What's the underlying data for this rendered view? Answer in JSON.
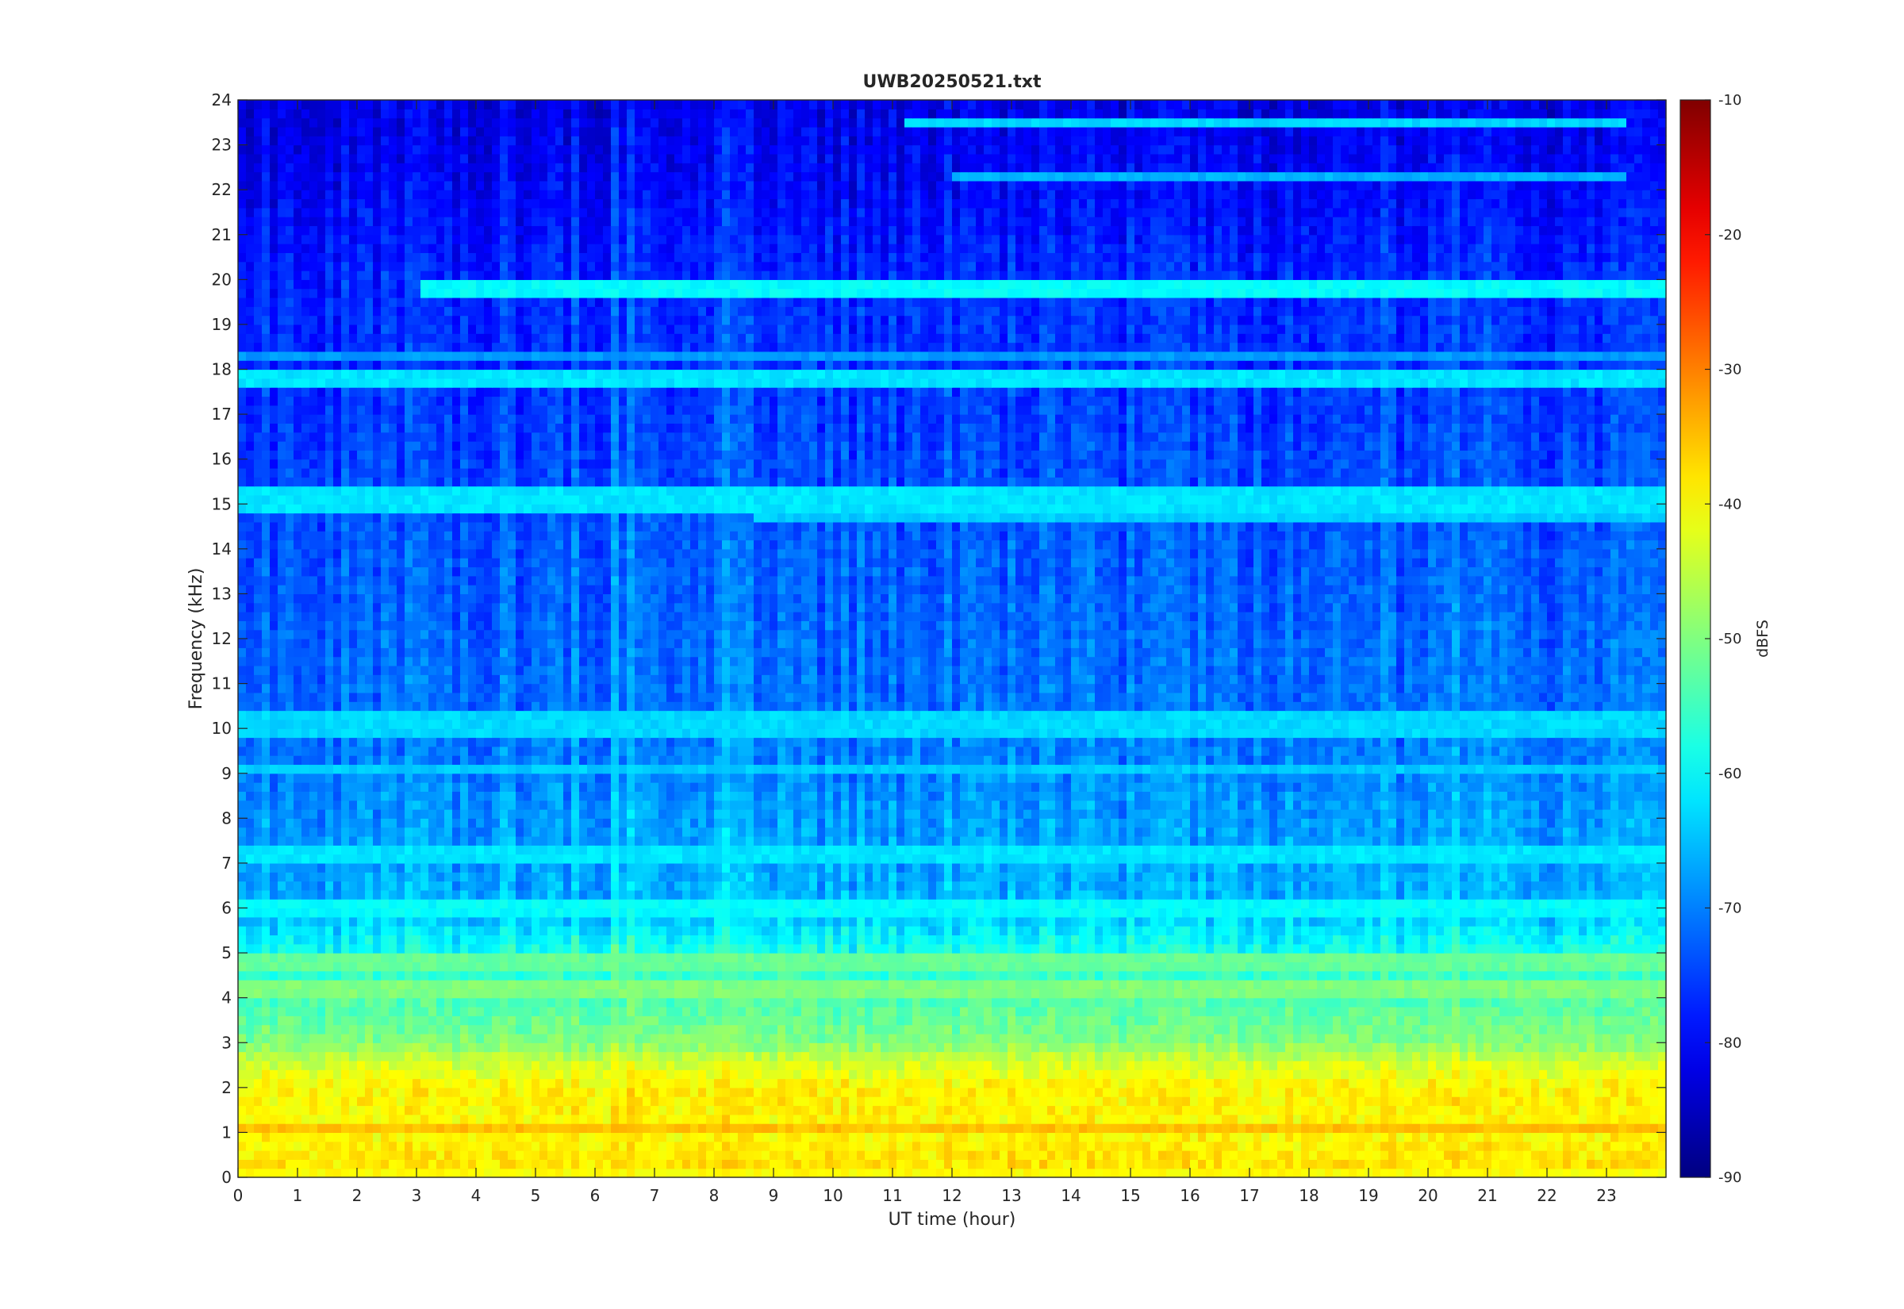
{
  "chart_data": {
    "type": "heatmap",
    "title": "UWB20250521.txt",
    "xlabel": "UT time (hour)",
    "ylabel": "Frequency (kHz)",
    "xlim": [
      0,
      24
    ],
    "ylim": [
      0,
      24
    ],
    "x_ticks": [
      "0",
      "1",
      "2",
      "3",
      "4",
      "5",
      "6",
      "7",
      "8",
      "9",
      "10",
      "11",
      "12",
      "13",
      "14",
      "15",
      "16",
      "17",
      "18",
      "19",
      "20",
      "21",
      "22",
      "23"
    ],
    "y_ticks": [
      "0",
      "1",
      "2",
      "3",
      "4",
      "5",
      "6",
      "7",
      "8",
      "9",
      "10",
      "11",
      "12",
      "13",
      "14",
      "15",
      "16",
      "17",
      "18",
      "19",
      "20",
      "21",
      "22",
      "23",
      "24"
    ],
    "colormap": "jet",
    "colorbar": {
      "label": "dBFS",
      "range": [
        -90,
        -10
      ],
      "ticks": [
        "-10",
        "-20",
        "-30",
        "-40",
        "-50",
        "-60",
        "-70",
        "-80",
        "-90"
      ]
    },
    "background_profile": {
      "frequency_khz": [
        0,
        0.3,
        1,
        2,
        2.6,
        3,
        4,
        5,
        6,
        8,
        10,
        14,
        18,
        20,
        22,
        24
      ],
      "level_dbfs": [
        -45,
        -38,
        -40,
        -39,
        -44,
        -50,
        -54,
        -58,
        -66,
        -68,
        -71,
        -73,
        -76,
        -77,
        -80,
        -82
      ]
    },
    "spectral_lines": [
      {
        "frequency_khz": 19.8,
        "level_dbfs": -60,
        "start_hour": 3.1,
        "end_hour": 24
      },
      {
        "frequency_khz": 17.8,
        "level_dbfs": -62,
        "start_hour": 0,
        "end_hour": 24
      },
      {
        "frequency_khz": 18.3,
        "level_dbfs": -68,
        "start_hour": 0,
        "end_hour": 24
      },
      {
        "frequency_khz": 23.5,
        "level_dbfs": -63,
        "start_hour": 11.2,
        "end_hour": 23.3
      },
      {
        "frequency_khz": 22.3,
        "level_dbfs": -66,
        "start_hour": 12,
        "end_hour": 23.3
      },
      {
        "frequency_khz": 15.3,
        "level_dbfs": -62,
        "start_hour": 0,
        "end_hour": 24
      },
      {
        "frequency_khz": 15.0,
        "level_dbfs": -62,
        "start_hour": 0,
        "end_hour": 24
      },
      {
        "frequency_khz": 14.8,
        "level_dbfs": -64,
        "start_hour": 8.7,
        "end_hour": 24
      },
      {
        "frequency_khz": 10.2,
        "level_dbfs": -63,
        "start_hour": 0,
        "end_hour": 24
      },
      {
        "frequency_khz": 9.9,
        "level_dbfs": -63,
        "start_hour": 0,
        "end_hour": 24
      },
      {
        "frequency_khz": 9.1,
        "level_dbfs": -64,
        "start_hour": 0,
        "end_hour": 24
      },
      {
        "frequency_khz": 7.2,
        "level_dbfs": -62,
        "start_hour": 0,
        "end_hour": 24
      },
      {
        "frequency_khz": 6.0,
        "level_dbfs": -60,
        "start_hour": 0,
        "end_hour": 24
      },
      {
        "frequency_khz": 4.8,
        "level_dbfs": -52,
        "start_hour": 0,
        "end_hour": 24
      },
      {
        "frequency_khz": 4.2,
        "level_dbfs": -50,
        "start_hour": 0,
        "end_hour": 24
      },
      {
        "frequency_khz": 1.1,
        "level_dbfs": -35,
        "start_hour": 0,
        "end_hour": 24
      },
      {
        "frequency_khz": 0.1,
        "level_dbfs": -40,
        "start_hour": 0,
        "end_hour": 24
      }
    ]
  }
}
